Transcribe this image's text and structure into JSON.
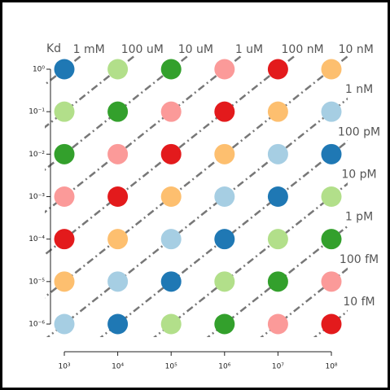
{
  "chart_data": {
    "type": "scatter",
    "log_x": true,
    "log_y": true,
    "kd_label": "Kd",
    "xlim": [
      1000,
      100000000
    ],
    "ylim": [
      1e-06,
      1
    ],
    "xticks": [
      {
        "value": 1000,
        "label": "10³"
      },
      {
        "value": 10000,
        "label": "10⁴"
      },
      {
        "value": 100000,
        "label": "10⁵"
      },
      {
        "value": 1000000,
        "label": "10⁶"
      },
      {
        "value": 10000000,
        "label": "10⁷"
      },
      {
        "value": 100000000,
        "label": "10⁸"
      }
    ],
    "yticks": [
      {
        "value": 1,
        "label": "10⁰"
      },
      {
        "value": 0.1,
        "label": "10⁻¹"
      },
      {
        "value": 0.01,
        "label": "10⁻²"
      },
      {
        "value": 0.001,
        "label": "10⁻³"
      },
      {
        "value": 0.0001,
        "label": "10⁻⁴"
      },
      {
        "value": 1e-05,
        "label": "10⁻⁵"
      },
      {
        "value": 1e-06,
        "label": "10⁻⁶"
      }
    ],
    "kd_lines": [
      {
        "value": 0.001,
        "label": "1 mM"
      },
      {
        "value": 0.0001,
        "label": "100 uM"
      },
      {
        "value": 1e-05,
        "label": "10 uM"
      },
      {
        "value": 1e-06,
        "label": "1 uM"
      },
      {
        "value": 1e-07,
        "label": "100 nM"
      },
      {
        "value": 1e-08,
        "label": "10 nM"
      },
      {
        "value": 1e-09,
        "label": "1 nM"
      },
      {
        "value": 1e-10,
        "label": "100 pM"
      },
      {
        "value": 1e-11,
        "label": "10 pM"
      },
      {
        "value": 1e-12,
        "label": "1 pM"
      },
      {
        "value": 1e-13,
        "label": "100 fM"
      },
      {
        "value": 1e-14,
        "label": "10 fM"
      }
    ],
    "kd_line_color": "#777777",
    "series": [
      {
        "color": "#1f78b4",
        "x": [
          1000,
          10000,
          100000,
          1000000,
          10000000,
          100000000
        ],
        "y": [
          1,
          1e-06,
          1e-05,
          0.0001,
          0.001,
          0.01
        ]
      },
      {
        "color": "#b2df8a",
        "x": [
          1000,
          10000,
          100000,
          1000000,
          10000000,
          100000000
        ],
        "y": [
          0.1,
          1,
          1e-06,
          1e-05,
          0.0001,
          0.001
        ]
      },
      {
        "color": "#33a02c",
        "x": [
          1000,
          10000,
          100000,
          1000000,
          10000000,
          100000000
        ],
        "y": [
          0.01,
          0.1,
          1,
          1e-06,
          1e-05,
          0.0001
        ]
      },
      {
        "color": "#fb9a99",
        "x": [
          1000,
          10000,
          100000,
          1000000,
          10000000,
          100000000
        ],
        "y": [
          0.001,
          0.01,
          0.1,
          1,
          1e-06,
          1e-05
        ]
      },
      {
        "color": "#e31a1c",
        "x": [
          1000,
          10000,
          100000,
          1000000,
          10000000,
          100000000
        ],
        "y": [
          0.0001,
          0.001,
          0.01,
          0.1,
          1,
          1e-06
        ]
      },
      {
        "color": "#fdbf6f",
        "x": [
          1000,
          10000,
          100000,
          1000000,
          10000000,
          100000000
        ],
        "y": [
          1e-05,
          0.0001,
          0.001,
          0.01,
          0.1,
          1
        ]
      },
      {
        "color": "#a6cee3",
        "x": [
          1000,
          10000,
          100000,
          1000000,
          10000000,
          100000000
        ],
        "y": [
          1e-06,
          1e-05,
          0.0001,
          0.001,
          0.01,
          0.1
        ]
      }
    ]
  }
}
